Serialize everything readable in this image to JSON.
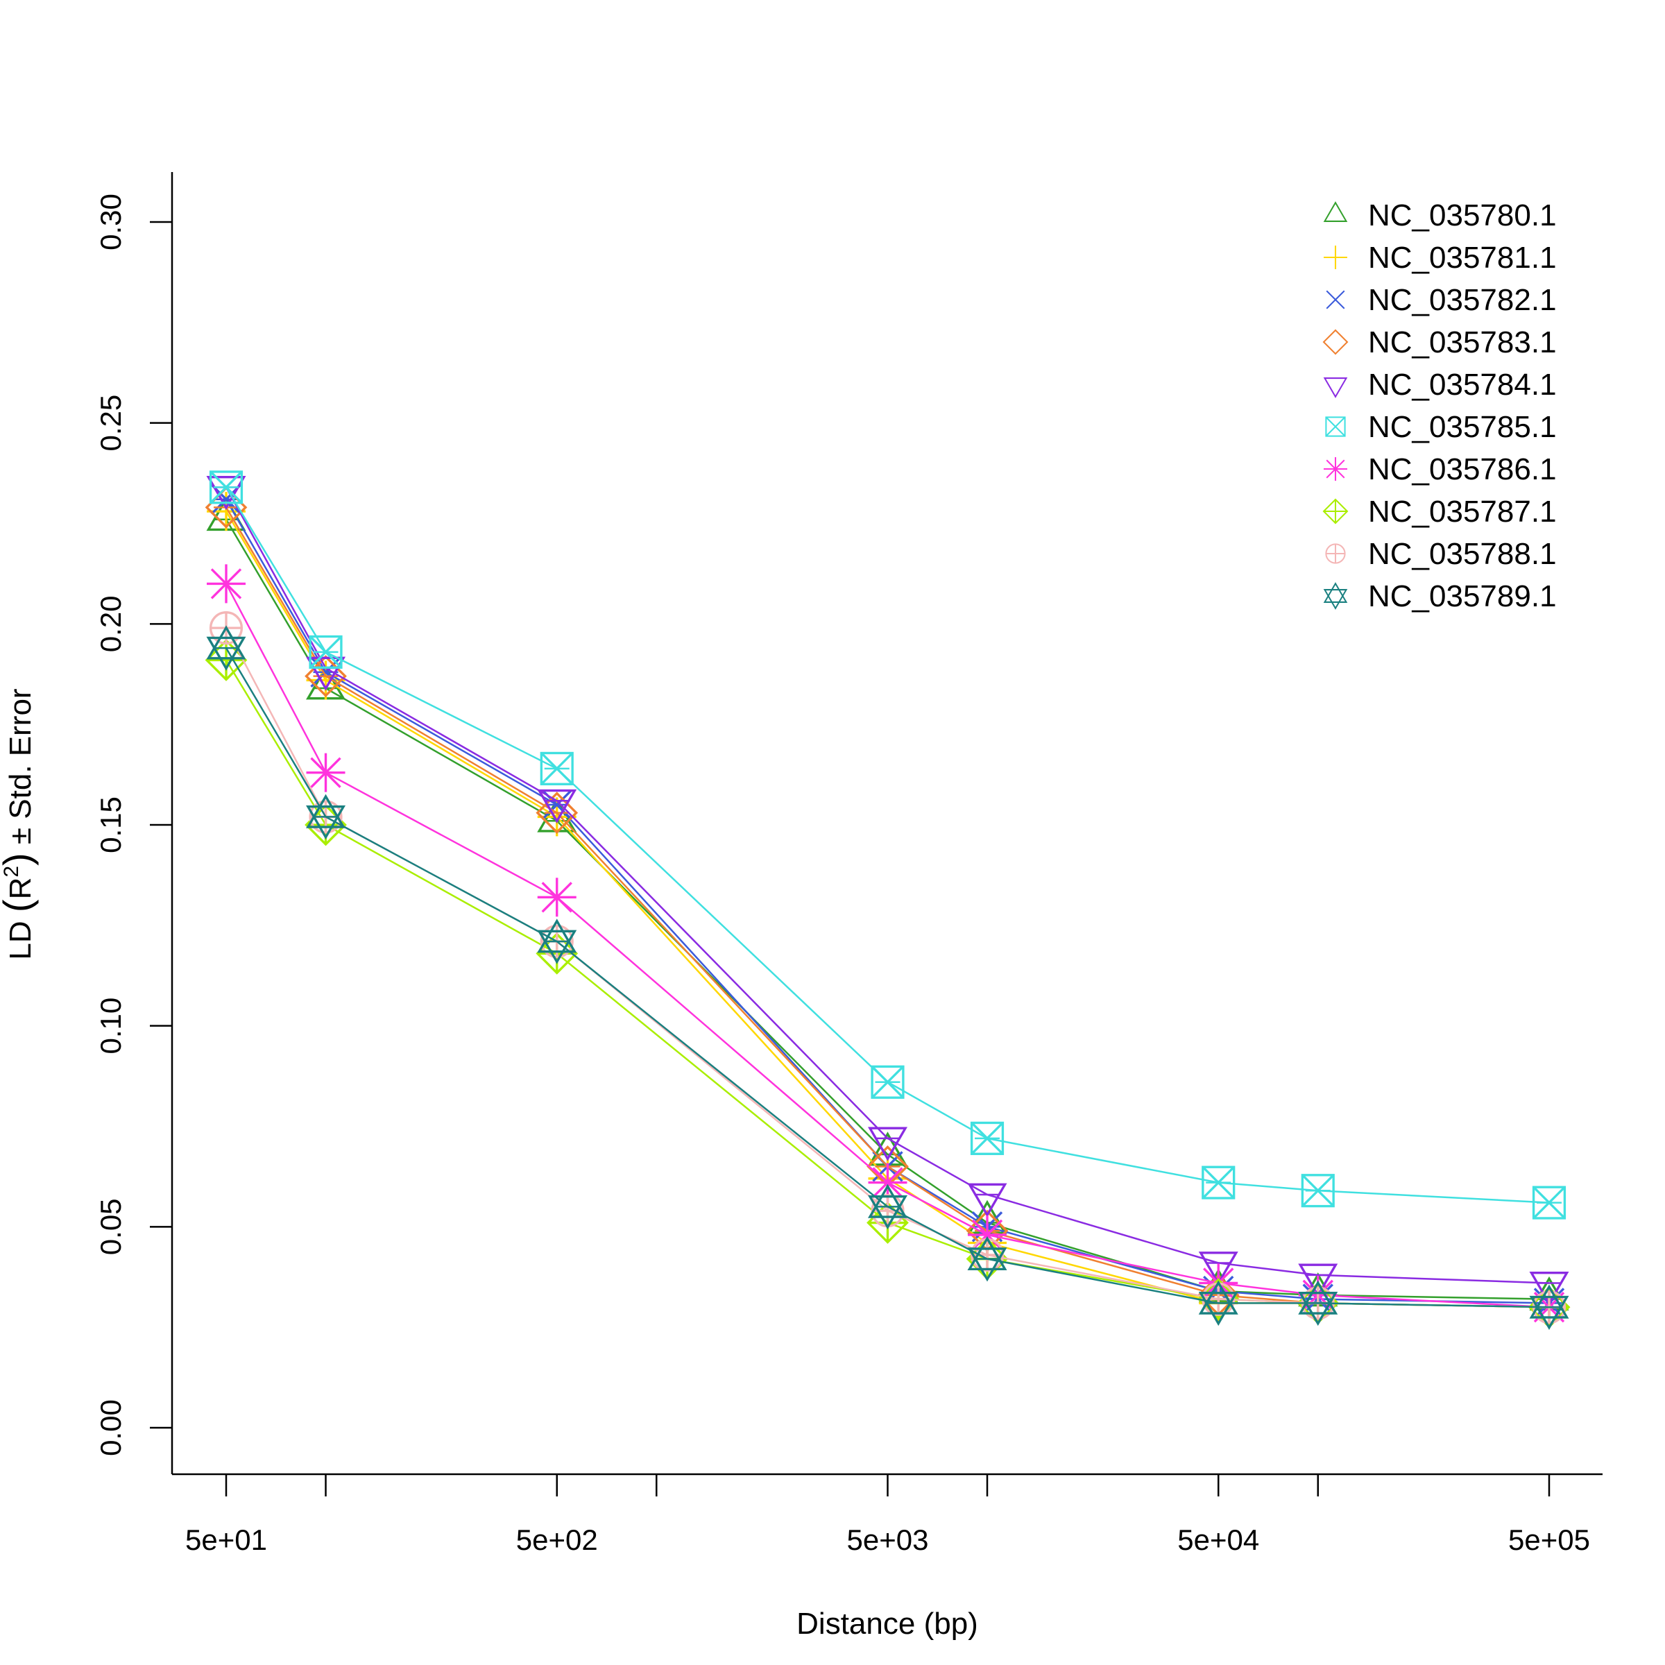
{
  "chart_data": {
    "type": "line",
    "title": "",
    "xlabel": "Distance (bp)",
    "ylabel": {
      "prefix": "LD ",
      "base": "R",
      "sup": "2",
      "suffix": " ± Std. Error"
    },
    "x_scale": "log",
    "x": [
      50,
      100,
      500,
      5000,
      10000,
      50000,
      100000,
      500000
    ],
    "x_ticks": [
      50,
      100,
      500,
      1000,
      5000,
      10000,
      50000,
      100000,
      500000
    ],
    "x_tick_labels": [
      "5e+01",
      "",
      "5e+02",
      "",
      "5e+03",
      "",
      "5e+04",
      "",
      "5e+05"
    ],
    "ylim": [
      0,
      0.3
    ],
    "y_ticks": [
      0,
      0.05,
      0.1,
      0.15,
      0.2,
      0.25,
      0.3
    ],
    "y_tick_labels": [
      "0.00",
      "0.05",
      "0.10",
      "0.15",
      "0.20",
      "0.25",
      "0.30"
    ],
    "grid": false,
    "legend_position": "top-right",
    "series": [
      {
        "name": "NC_035780.1",
        "color": "#33a02c",
        "marker": "triangle-up",
        "values": [
          0.226,
          0.184,
          0.151,
          0.068,
          0.051,
          0.034,
          0.033,
          0.032
        ]
      },
      {
        "name": "NC_035781.1",
        "color": "#ffd700",
        "marker": "plus",
        "values": [
          0.228,
          0.186,
          0.152,
          0.062,
          0.046,
          0.031,
          0.031,
          0.03
        ]
      },
      {
        "name": "NC_035782.1",
        "color": "#3b5bdb",
        "marker": "cross",
        "values": [
          0.231,
          0.188,
          0.155,
          0.065,
          0.05,
          0.034,
          0.032,
          0.031
        ]
      },
      {
        "name": "NC_035783.1",
        "color": "#f08030",
        "marker": "diamond",
        "values": [
          0.229,
          0.187,
          0.153,
          0.065,
          0.049,
          0.033,
          0.031,
          0.03
        ]
      },
      {
        "name": "NC_035784.1",
        "color": "#8a2be2",
        "marker": "triangle-down",
        "values": [
          0.234,
          0.189,
          0.156,
          0.072,
          0.058,
          0.041,
          0.038,
          0.036
        ]
      },
      {
        "name": "NC_035785.1",
        "color": "#40e0e0",
        "marker": "square-x",
        "values": [
          0.234,
          0.193,
          0.164,
          0.086,
          0.072,
          0.061,
          0.059,
          0.056
        ]
      },
      {
        "name": "NC_035786.1",
        "color": "#ff33dd",
        "marker": "asterisk",
        "values": [
          0.21,
          0.163,
          0.132,
          0.061,
          0.048,
          0.036,
          0.033,
          0.03
        ]
      },
      {
        "name": "NC_035787.1",
        "color": "#aaee00",
        "marker": "diamond-plus",
        "values": [
          0.191,
          0.15,
          0.118,
          0.051,
          0.042,
          0.032,
          0.031,
          0.03
        ]
      },
      {
        "name": "NC_035788.1",
        "color": "#f4b6b6",
        "marker": "circle-plus",
        "values": [
          0.199,
          0.152,
          0.121,
          0.054,
          0.043,
          0.032,
          0.031,
          0.03
        ]
      },
      {
        "name": "NC_035789.1",
        "color": "#1a8080",
        "marker": "star-of-david",
        "values": [
          0.194,
          0.152,
          0.121,
          0.055,
          0.042,
          0.031,
          0.031,
          0.03
        ]
      }
    ]
  }
}
